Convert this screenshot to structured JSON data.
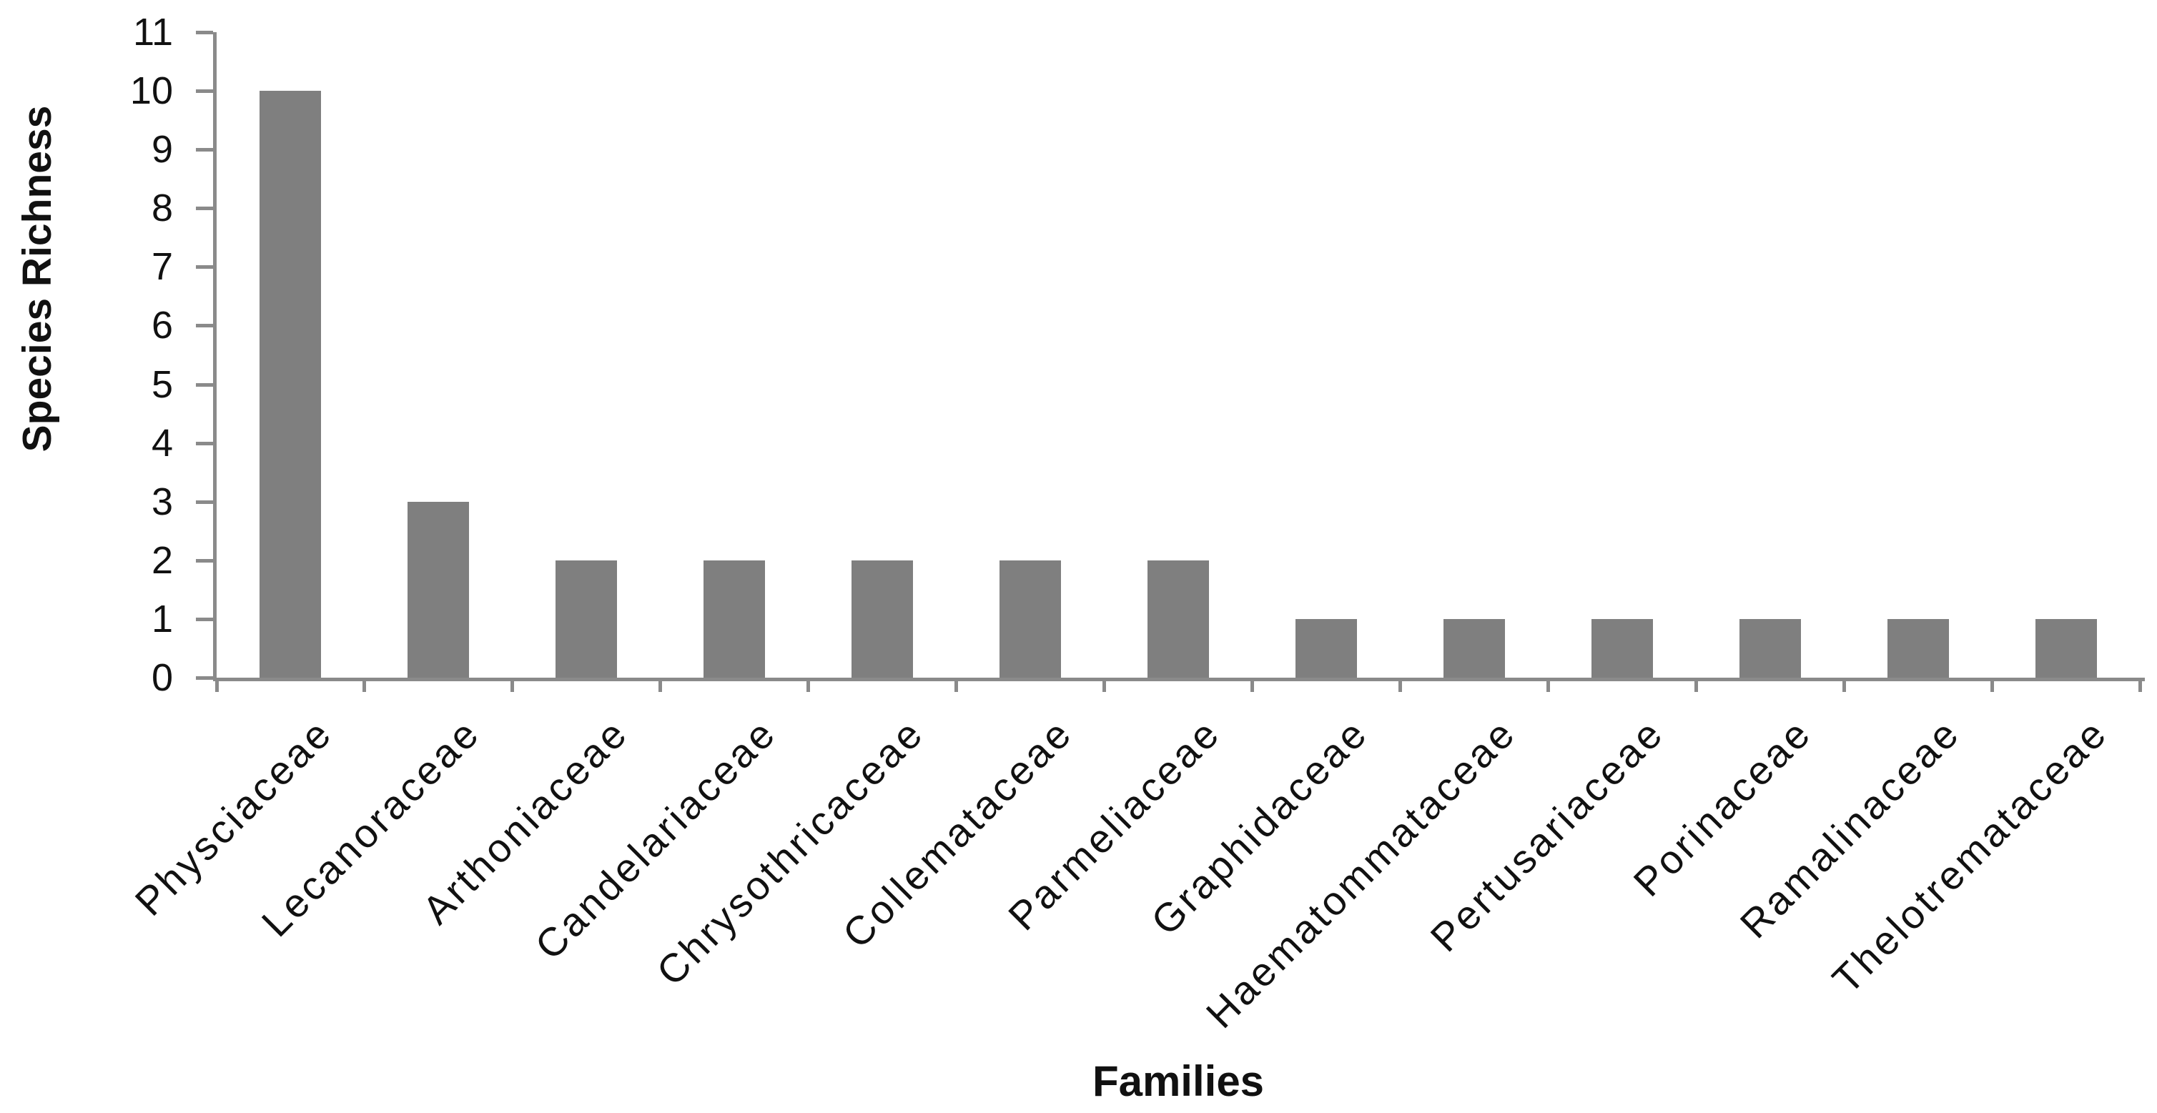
{
  "chart_data": {
    "type": "bar",
    "title": "",
    "xlabel": "Families",
    "ylabel": "Species Richness",
    "categories": [
      "Physciaceae",
      "Lecanoraceae",
      "Arthoniaceae",
      "Candelariaceae",
      "Chrysothricaceae",
      "Collemataceae",
      "Parmeliaceae",
      "Graphidaceae",
      "Haematommataceae",
      "Pertusariaceae",
      "Porinaceae",
      "Ramalinaceae",
      "Thelotremataceae"
    ],
    "values": [
      10,
      3,
      2,
      2,
      2,
      2,
      2,
      1,
      1,
      1,
      1,
      1,
      1
    ],
    "ylim": [
      0,
      11
    ],
    "yticks": [
      0,
      1,
      2,
      3,
      4,
      5,
      6,
      7,
      8,
      9,
      10,
      11
    ],
    "grid": false,
    "legend": null,
    "x_label_rotation_deg": 45,
    "bar_color": "#7f7f7f",
    "axis_color": "#8a8a8a",
    "text_color": "#111111",
    "background": "#ffffff"
  }
}
